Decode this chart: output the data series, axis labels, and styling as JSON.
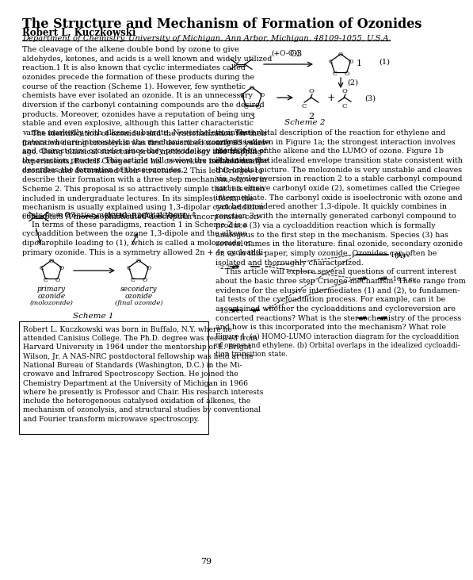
{
  "title": "The Structure and Mechanism of Formation of Ozonides",
  "author": "Robert L. Kuczkowski",
  "affiliation": "Department of Chemistry, University of Michigan, Ann Arbor, Michigan, 48109-1055, U.S.A.",
  "body_left_p1": "The cleavage of the alkene double bond by ozone to give\naldehydes, ketones, and acids is a well known and widely utilized\nreaction.1 It is also known that cyclic intermediates called\nozonides precede the formation of these products during the\ncourse of the reaction (Scheme 1). However, few synthetic\nchemists have ever isolated an ozonide. It is an unnecessary\ndiversion if the carbonyl containing compounds are the desired\nproducts. Moreover, ozonides have a reputation of being un-\nstable and even explosive, although this latter characteristic\nvaries markedly with alkene substrate. Nevertheless, investi-\ngators who are interested in the mechanism of ozonolysis isolate\nand characterize ozonides since they provide key information on\nthe reaction process. This article will review the mechanism that\ndescribes the formation of these ozonides.",
  "body_left_p2": "    The identification of ozonides and the rationalization for their\nformation during ozonolysis was first described nearly 35 years\nago. Using classical structure-proof methodology and trapping\nexperiments, Rudolf Criegee and his co-workers isolated many\nozonides and determined their structures.2 This led Criegee to\ndescribe their formation with a three step mechanism, shown in\nScheme 2. This proposal is so attractively simple that it is often\nincluded in undergraduate lectures. In its simplest form, the\nmechanism is usually explained using 1,3-dipolar cycloaddition\nconcepts.3 A more sophisticated description incorporates con-",
  "body_left_p3": "cepts from frontier molecular orbital theory.4\n    In terms of these paradigms, reaction 1 in Scheme 2 is a\ncycloaddition between the ozone 1,3-dipole and the alkene\ndipolarophile leading to (1), which is called a molozonide or\nprimary ozonide. This is a symmetry allowed 2n + 4s cycloaddi-",
  "body_right_p1": "tion. The orbital description of the reaction for ethylene and\nozone is shown in Figure 1a; the strongest interaction involves\nthe HOMO of the alkene and the LUMO of ozone. Figure 1b\nillustrates the idealized envelope transition state consistent with\nthis orbital picture. The molozonide is very unstable and cleaves\nvia a cycloreversion in reaction 2 to a stable carbonyl compound\nand an elusive carbonyl oxide (2), sometimes called the Criegee\nintermediate. The carbonyl oxide is isoelectronic with ozone and\ncan be considered another 1,3-dipole. It quickly combines in\nreaction 3 with the internally generated carbonyl compound to\nproduce (3) via a cycloaddition reaction which is formally\nanalogous to the first step in the mechanism. Species (3) has\nseveral names in the literature: final ozonide, secondary ozonide\nor, as in this paper, simply ozonide. Ozonides can often be\nisolated and thoroughly characterized.\n    This article will explore several questions of current interest\nabout the basic three step Criegee mechanism. These range from\nevidence for the elusive intermediates (1) and (2), to fundamen-\ntal tests of the cycloaddition process. For example, can it be\nascertained whether the cycloadditions and cycloreversion are\nconcerted reactions? What is the stereochemistry of the process\nand how is this incorporated into the mechanism? What role",
  "bio_text": "Robert L. Kuczkowski was born in Buffalo, N.Y. where he\nattended Canisius College. The Ph.D. degree was received from\nHarvard University in 1964 under the mentorship of E. Bright\nWilson, Jr. A NAS-NRC postdoctoral fellowship was held at the\nNational Bureau of Standards (Washington, D.C.) in the Mi-\ncrowave and Infrared Spectroscopy Section. He joined the\nChemistry Department at the University of Michigan in 1966\nwhere he presently is Professor and Chair. His research interests\ninclude the heterogeneous catalysed oxidation of alkenes, the\nmechanism of ozonolysis, and structural studies by conventional\nand Fourier transform microwave spectroscopy.",
  "fig_caption": "Figure 1. (a) HOMO-LUMO interaction diagram for the cycloaddition\nof ozone and ethylene. (b) Orbital overlaps in the idealized cycloaddi-\ntion transition state.",
  "page_number": "79",
  "bg": "#ffffff",
  "fg": "#000000",
  "title_fs": 11.5,
  "body_fs": 6.8,
  "author_fs": 8.5,
  "affil_fs": 7.2,
  "bio_fs": 6.6
}
